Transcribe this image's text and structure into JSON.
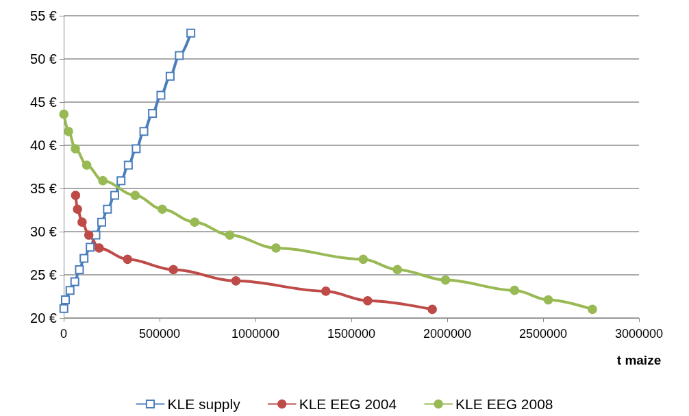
{
  "chart_data": {
    "type": "line",
    "xlabel": "t maize",
    "xlim": [
      0,
      3000000
    ],
    "xticks": [
      0,
      500000,
      1000000,
      1500000,
      2000000,
      2500000,
      3000000
    ],
    "ylim": [
      20,
      55
    ],
    "yticks": [
      {
        "value": 20,
        "label": "20 €"
      },
      {
        "value": 25,
        "label": "25 €"
      },
      {
        "value": 30,
        "label": "30 €"
      },
      {
        "value": 35,
        "label": "35 €"
      },
      {
        "value": 40,
        "label": "40 €"
      },
      {
        "value": 45,
        "label": "45 €"
      },
      {
        "value": 50,
        "label": "50 €"
      },
      {
        "value": 55,
        "label": "55 €"
      }
    ],
    "grid": "y",
    "legend": "bottom",
    "series": [
      {
        "name": "KLE supply",
        "color": "#4a7ebb",
        "marker": "square",
        "x": [
          1000,
          9000,
          33000,
          58000,
          82000,
          106000,
          138000,
          168000,
          198000,
          228000,
          266000,
          299000,
          337000,
          378000,
          418000,
          463000,
          507000,
          555000,
          603000,
          663000
        ],
        "values": [
          21.1,
          22.1,
          23.2,
          24.2,
          25.6,
          26.9,
          28.2,
          29.6,
          31.1,
          32.6,
          34.2,
          35.9,
          37.7,
          39.6,
          41.6,
          43.7,
          45.8,
          48.0,
          50.4,
          53.0
        ]
      },
      {
        "name": "KLE EEG 2004",
        "color": "#be4b48",
        "marker": "circle",
        "x": [
          62000,
          72000,
          96000,
          131000,
          185000,
          333000,
          572000,
          898000,
          1367000,
          1585000,
          1922000
        ],
        "values": [
          34.2,
          32.6,
          31.1,
          29.6,
          28.1,
          26.8,
          25.6,
          24.3,
          23.1,
          22.0,
          21.0
        ]
      },
      {
        "name": "KLE EEG 2008",
        "color": "#98b954",
        "marker": "circle",
        "x": [
          1000,
          25000,
          61000,
          120000,
          204000,
          373000,
          514000,
          683000,
          866000,
          1107000,
          1562000,
          1740000,
          1991000,
          2351000,
          2527000,
          2757000
        ],
        "values": [
          43.6,
          41.6,
          39.6,
          37.7,
          35.9,
          34.2,
          32.6,
          31.1,
          29.6,
          28.1,
          26.8,
          25.6,
          24.4,
          23.2,
          22.1,
          21.0
        ]
      }
    ]
  }
}
